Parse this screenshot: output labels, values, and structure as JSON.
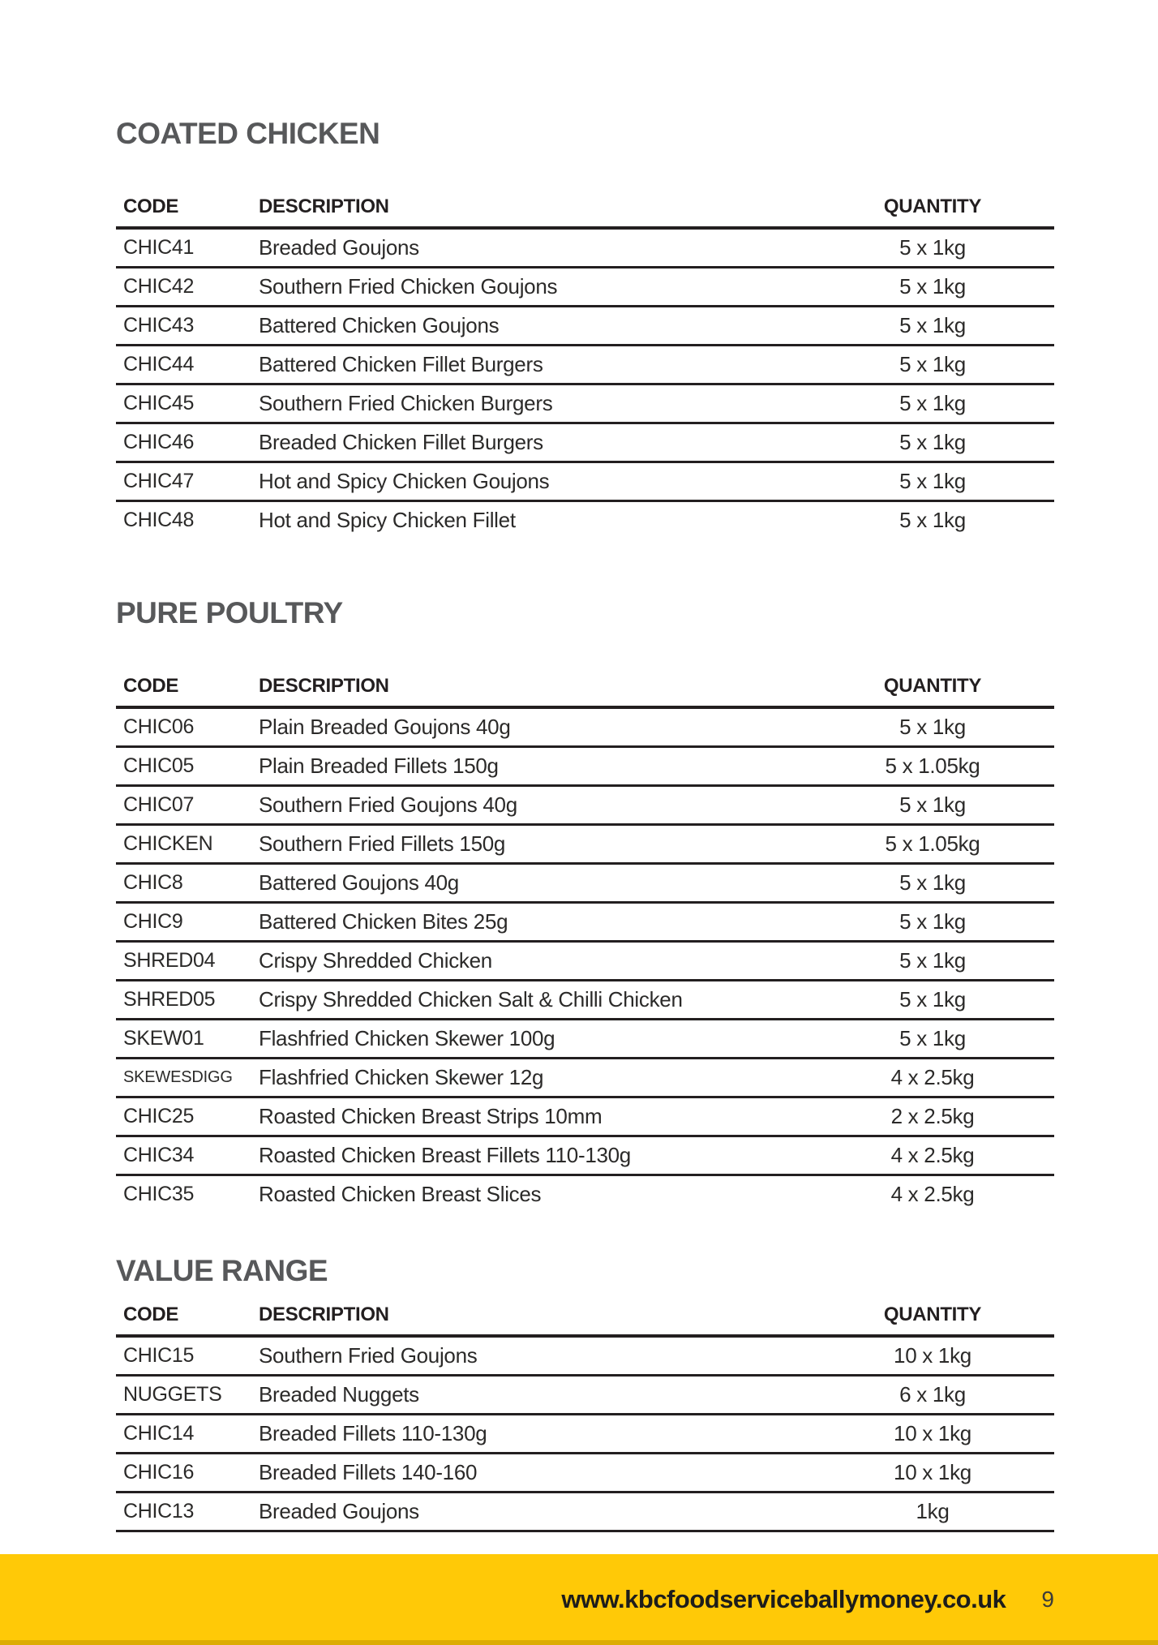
{
  "footer": {
    "url": "www.kbcfoodserviceballymoney.co.uk",
    "page_number": "9",
    "bar_color": "#FFC907",
    "bar_edge_color": "#DCAC04"
  },
  "colors": {
    "section_heading": "#57585A",
    "body_text": "#2B2A29",
    "table_lines": "#231F20"
  },
  "sections": [
    {
      "title": "COATED CHICKEN",
      "columns": {
        "code": "CODE",
        "description": "DESCRIPTION",
        "quantity": "QUANTITY"
      },
      "bottom_border": false,
      "rows": [
        {
          "code": "CHIC41",
          "description": "Breaded Goujons",
          "quantity": "5 x 1kg"
        },
        {
          "code": "CHIC42",
          "description": "Southern Fried Chicken Goujons",
          "quantity": "5 x 1kg"
        },
        {
          "code": "CHIC43",
          "description": "Battered Chicken Goujons",
          "quantity": "5 x 1kg"
        },
        {
          "code": "CHIC44",
          "description": "Battered Chicken Fillet Burgers",
          "quantity": "5 x 1kg"
        },
        {
          "code": "CHIC45",
          "description": "Southern Fried Chicken Burgers",
          "quantity": "5 x 1kg"
        },
        {
          "code": "CHIC46",
          "description": "Breaded Chicken Fillet Burgers",
          "quantity": "5 x 1kg"
        },
        {
          "code": "CHIC47",
          "description": "Hot and Spicy Chicken Goujons",
          "quantity": "5 x 1kg"
        },
        {
          "code": "CHIC48",
          "description": "Hot and Spicy Chicken Fillet",
          "quantity": "5 x 1kg"
        }
      ]
    },
    {
      "title": "PURE POULTRY",
      "columns": {
        "code": "CODE",
        "description": "DESCRIPTION",
        "quantity": "QUANTITY"
      },
      "bottom_border": false,
      "rows": [
        {
          "code": "CHIC06",
          "description": "Plain Breaded Goujons 40g",
          "quantity": "5 x 1kg"
        },
        {
          "code": "CHIC05",
          "description": "Plain Breaded Fillets 150g",
          "quantity": "5 x 1.05kg"
        },
        {
          "code": "CHIC07",
          "description": "Southern Fried Goujons 40g",
          "quantity": "5 x 1kg"
        },
        {
          "code": "CHICKEN",
          "description": "Southern Fried Fillets 150g",
          "quantity": "5 x 1.05kg"
        },
        {
          "code": "CHIC8",
          "description": "Battered Goujons 40g",
          "quantity": "5 x 1kg"
        },
        {
          "code": "CHIC9",
          "description": "Battered Chicken Bites 25g",
          "quantity": "5 x 1kg"
        },
        {
          "code": "SHRED04",
          "description": "Crispy Shredded Chicken",
          "quantity": "5 x 1kg"
        },
        {
          "code": "SHRED05",
          "description": "Crispy Shredded Chicken Salt & Chilli Chicken",
          "quantity": "5 x 1kg"
        },
        {
          "code": "SKEW01",
          "description": "Flashfried Chicken Skewer 100g",
          "quantity": "5 x 1kg"
        },
        {
          "code": "SKEWESDIGG",
          "description": "Flashfried Chicken Skewer 12g",
          "quantity": "4 x 2.5kg",
          "small_code": true
        },
        {
          "code": "CHIC25",
          "description": "Roasted Chicken Breast Strips 10mm",
          "quantity": "2 x 2.5kg"
        },
        {
          "code": "CHIC34",
          "description": "Roasted Chicken Breast Fillets 110-130g",
          "quantity": "4 x 2.5kg"
        },
        {
          "code": "CHIC35",
          "description": "Roasted Chicken Breast Slices",
          "quantity": "4 x 2.5kg"
        }
      ]
    },
    {
      "title": "VALUE RANGE",
      "columns": {
        "code": "CODE",
        "description": "DESCRIPTION",
        "quantity": "QUANTITY"
      },
      "bottom_border": true,
      "rows": [
        {
          "code": "CHIC15",
          "description": "Southern Fried Goujons",
          "quantity": "10 x 1kg"
        },
        {
          "code": "NUGGETS",
          "description": "Breaded Nuggets",
          "quantity": "6 x 1kg"
        },
        {
          "code": "CHIC14",
          "description": "Breaded Fillets 110-130g",
          "quantity": "10 x 1kg"
        },
        {
          "code": "CHIC16",
          "description": "Breaded Fillets 140-160",
          "quantity": "10 x 1kg"
        },
        {
          "code": "CHIC13",
          "description": "Breaded Goujons",
          "quantity": "1kg"
        }
      ]
    }
  ]
}
